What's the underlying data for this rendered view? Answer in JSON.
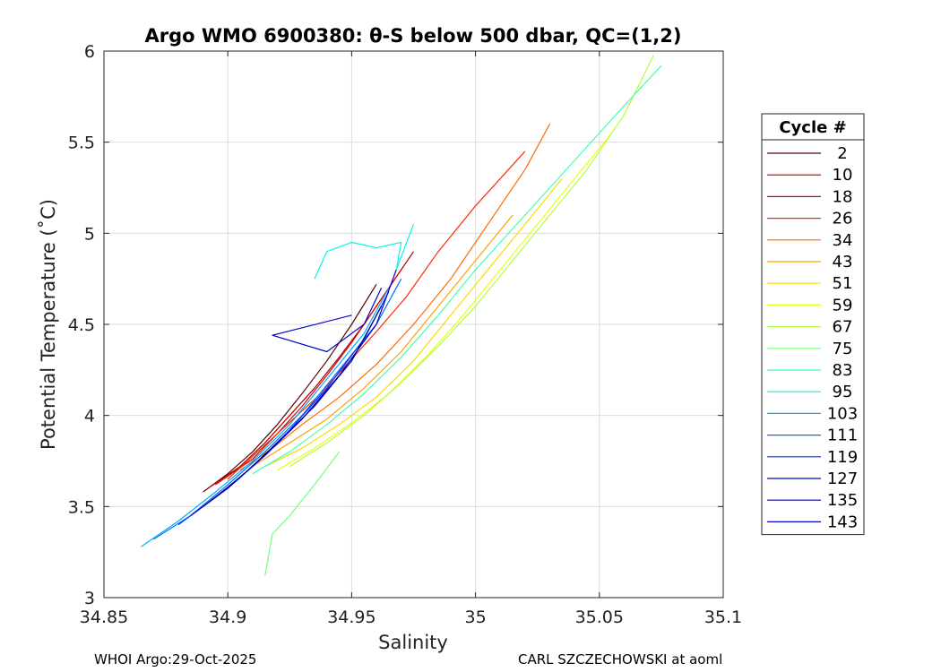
{
  "chart_data": {
    "type": "line",
    "title": "Argo WMO 6900380: θ-S below 500 dbar,  QC=(1,2)",
    "xlabel": "Salinity",
    "ylabel": "Potential Temperature (˚C)",
    "xlim": [
      34.85,
      35.1
    ],
    "ylim": [
      3,
      6
    ],
    "xticks": [
      "34.85",
      "34.9",
      "34.95",
      "35",
      "35.05",
      "35.1"
    ],
    "yticks": [
      "3",
      "3.5",
      "4",
      "4.5",
      "5",
      "5.5",
      "6"
    ],
    "grid": true,
    "legend": {
      "title": "Cycle #",
      "placement": "right-outside",
      "entries": [
        "2",
        "10",
        "18",
        "26",
        "34",
        "43",
        "51",
        "59",
        "67",
        "75",
        "83",
        "95",
        "103",
        "111",
        "119",
        "127",
        "135",
        "143"
      ],
      "colors": [
        "#5a0000",
        "#a80000",
        "#e00000",
        "#ff2a00",
        "#ff6a00",
        "#ffa000",
        "#ffd800",
        "#e8ff10",
        "#b0ff40",
        "#70ff80",
        "#40ffb0",
        "#10f0e8",
        "#00b0ff",
        "#0070ff",
        "#0030ff",
        "#0000d0",
        "#000090",
        "#0000c8"
      ]
    },
    "series": [
      {
        "color": "#5a0000",
        "x": [
          34.89,
          34.9,
          34.91,
          34.92,
          34.93,
          34.94,
          34.95,
          34.96
        ],
        "y": [
          3.58,
          3.68,
          3.8,
          3.95,
          4.12,
          4.3,
          4.5,
          4.72
        ]
      },
      {
        "color": "#a80000",
        "x": [
          34.892,
          34.905,
          34.915,
          34.925,
          34.935,
          34.945,
          34.955,
          34.965,
          34.975
        ],
        "y": [
          3.6,
          3.72,
          3.85,
          4.0,
          4.15,
          4.32,
          4.5,
          4.7,
          4.9
        ]
      },
      {
        "color": "#e00000",
        "x": [
          34.895,
          34.91,
          34.92,
          34.93,
          34.94,
          34.95,
          34.96,
          34.97
        ],
        "y": [
          3.62,
          3.76,
          3.9,
          4.05,
          4.22,
          4.4,
          4.6,
          4.8
        ]
      },
      {
        "color": "#ff2a00",
        "x": [
          34.9,
          34.912,
          34.924,
          34.936,
          34.948,
          34.96,
          34.972,
          34.985,
          35.0,
          35.02
        ],
        "y": [
          3.65,
          3.8,
          3.95,
          4.1,
          4.28,
          4.46,
          4.65,
          4.9,
          5.15,
          5.45
        ]
      },
      {
        "color": "#ff6a00",
        "x": [
          34.905,
          34.918,
          34.93,
          34.945,
          34.96,
          34.975,
          34.99,
          35.005,
          35.02,
          35.03
        ],
        "y": [
          3.7,
          3.82,
          3.95,
          4.1,
          4.28,
          4.5,
          4.75,
          5.05,
          5.35,
          5.6
        ]
      },
      {
        "color": "#ffa000",
        "x": [
          34.91,
          34.925,
          34.94,
          34.955,
          34.97,
          34.985,
          35.0,
          35.015
        ],
        "y": [
          3.72,
          3.85,
          3.98,
          4.15,
          4.35,
          4.6,
          4.85,
          5.1
        ]
      },
      {
        "color": "#ffd800",
        "x": [
          34.915,
          34.93,
          34.945,
          34.96,
          34.975,
          34.99,
          35.005,
          35.02,
          35.035
        ],
        "y": [
          3.72,
          3.82,
          3.95,
          4.1,
          4.3,
          4.55,
          4.8,
          5.05,
          5.3
        ]
      },
      {
        "color": "#e8ff10",
        "x": [
          34.92,
          34.935,
          34.95,
          34.965,
          34.98,
          34.995,
          35.01,
          35.025,
          35.04,
          35.055
        ],
        "y": [
          3.7,
          3.82,
          3.96,
          4.12,
          4.32,
          4.55,
          4.8,
          5.05,
          5.3,
          5.55
        ]
      },
      {
        "color": "#b0ff40",
        "x": [
          34.925,
          34.94,
          34.955,
          34.97,
          34.985,
          35.0,
          35.015,
          35.03,
          35.045,
          35.06,
          35.072
        ],
        "y": [
          3.72,
          3.85,
          4.0,
          4.18,
          4.38,
          4.6,
          4.85,
          5.1,
          5.35,
          5.65,
          5.98
        ]
      },
      {
        "color": "#70ff80",
        "x": [
          34.915,
          34.918,
          34.925,
          34.935,
          34.945
        ],
        "y": [
          3.12,
          3.35,
          3.45,
          3.62,
          3.8
        ]
      },
      {
        "color": "#40ffb0",
        "x": [
          34.91,
          34.925,
          34.94,
          34.955,
          34.97,
          34.985,
          35.0,
          35.02,
          35.04,
          35.06,
          35.075
        ],
        "y": [
          3.68,
          3.8,
          3.95,
          4.12,
          4.32,
          4.55,
          4.8,
          5.1,
          5.4,
          5.7,
          5.92
        ]
      },
      {
        "color": "#10f0e8",
        "x": [
          34.935,
          34.94,
          34.95,
          34.96,
          34.97,
          34.968,
          34.975
        ],
        "y": [
          4.75,
          4.9,
          4.95,
          4.92,
          4.95,
          4.8,
          5.05
        ]
      },
      {
        "color": "#00b0ff",
        "x": [
          34.865,
          34.88,
          34.895,
          34.91,
          34.925,
          34.94,
          34.955,
          34.965
        ],
        "y": [
          3.28,
          3.42,
          3.58,
          3.75,
          3.95,
          4.2,
          4.45,
          4.7
        ]
      },
      {
        "color": "#0070ff",
        "x": [
          34.87,
          34.885,
          34.9,
          34.915,
          34.93,
          34.945,
          34.96,
          34.97
        ],
        "y": [
          3.32,
          3.45,
          3.62,
          3.8,
          4.0,
          4.25,
          4.5,
          4.75
        ]
      },
      {
        "color": "#0030ff",
        "x": [
          34.88,
          34.895,
          34.91,
          34.925,
          34.94,
          34.955,
          34.965
        ],
        "y": [
          3.4,
          3.55,
          3.72,
          3.92,
          4.15,
          4.42,
          4.68
        ]
      },
      {
        "color": "#0000d0",
        "x": [
          34.885,
          34.9,
          34.915,
          34.93,
          34.945,
          34.96,
          34.968
        ],
        "y": [
          3.45,
          3.6,
          3.78,
          3.98,
          4.22,
          4.5,
          4.8
        ]
      },
      {
        "color": "#000090",
        "x": [
          34.89,
          34.905,
          34.92,
          34.935,
          34.95,
          34.962
        ],
        "y": [
          3.5,
          3.66,
          3.85,
          4.05,
          4.3,
          4.6
        ]
      },
      {
        "color": "#0000c8",
        "x": [
          34.95,
          34.918,
          34.94,
          34.955,
          34.962
        ],
        "y": [
          4.55,
          4.44,
          4.35,
          4.5,
          4.7
        ]
      }
    ]
  },
  "footer": {
    "left": "WHOI Argo:29-Oct-2025",
    "right": "CARL SZCZECHOWSKI at aoml"
  }
}
